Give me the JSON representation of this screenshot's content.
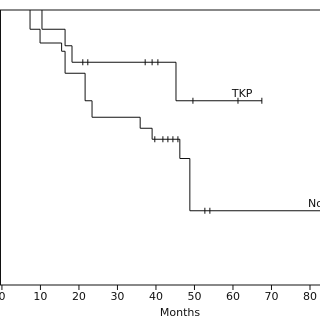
{
  "chart_data": {
    "type": "step",
    "xlabel": "Months",
    "xlim": [
      -0.5,
      82.6
    ],
    "ylim": [
      0,
      1.0
    ],
    "xticks": [
      0,
      10,
      20,
      30,
      40,
      50,
      60,
      70,
      80
    ],
    "series": [
      {
        "name": "TKP",
        "color": "#111111",
        "x": [
          0,
          10.4,
          16.4,
          18.2,
          45.2,
          67.5
        ],
        "values": [
          1.0,
          0.93,
          0.87,
          0.81,
          0.67,
          0.67
        ],
        "censor_x": [
          21,
          22.3,
          37.2,
          39,
          40.5,
          49.6,
          61.3,
          67.5
        ]
      },
      {
        "name": "Non-TKP",
        "color": "#111111",
        "x": [
          0,
          7.3,
          9.9,
          15.5,
          16.4,
          21.6,
          23.4,
          35.9,
          39,
          46.2,
          48.8,
          83
        ],
        "values": [
          1.0,
          0.93,
          0.88,
          0.85,
          0.77,
          0.67,
          0.61,
          0.57,
          0.53,
          0.46,
          0.27,
          0.27
        ],
        "censor_x": [
          39.7,
          41.8,
          43.1,
          44.4,
          45.7,
          52.7,
          54
        ]
      }
    ]
  }
}
